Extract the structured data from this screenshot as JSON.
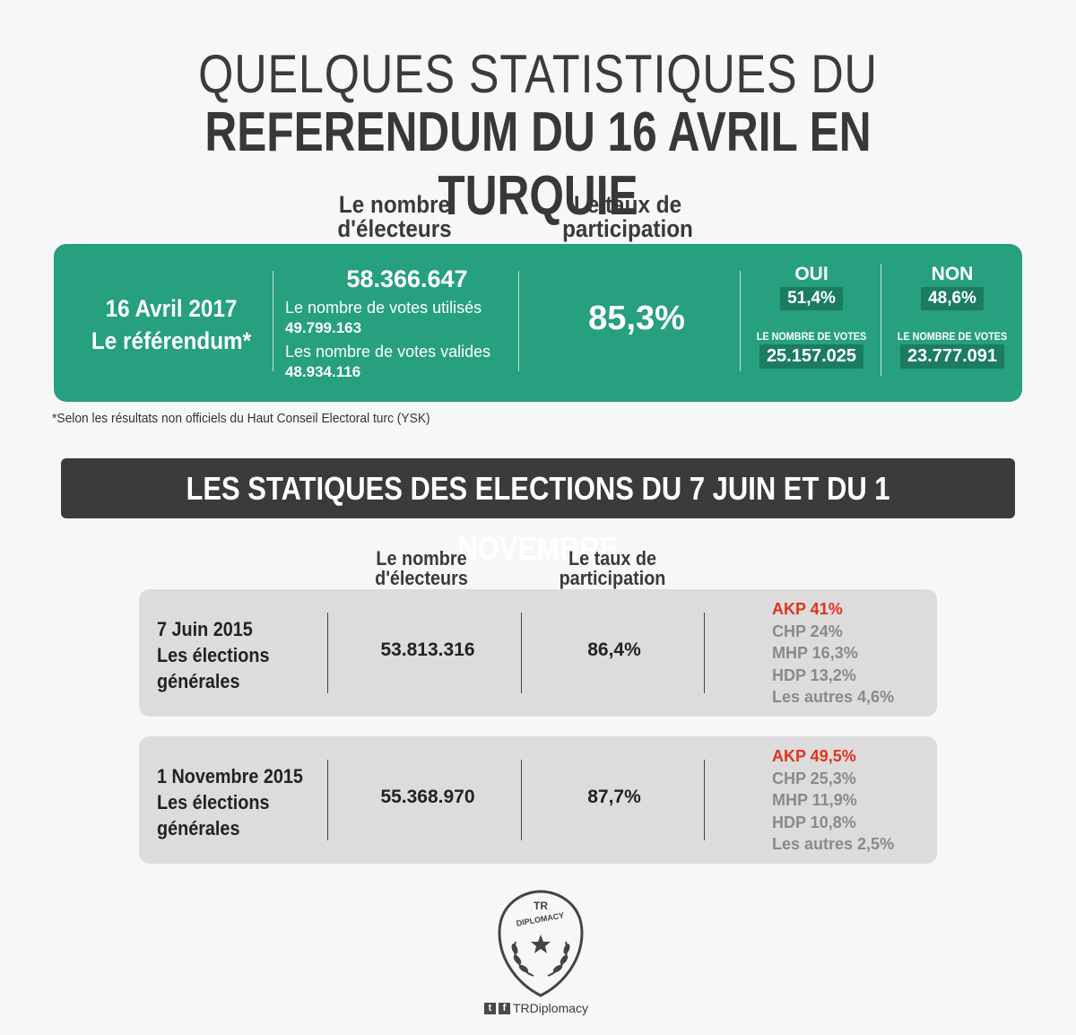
{
  "header": {
    "title_line1": "QUELQUES STATISTIQUES DU",
    "title_line2": "REFERENDUM DU 16 AVRIL EN TURQUIE"
  },
  "referendum_headers": {
    "voters_line1": "Le nombre",
    "voters_line2": "d'électeurs",
    "rate_line1": "Le taux de",
    "rate_line2": "participation"
  },
  "referendum": {
    "date": "16 Avril 2017",
    "label": "Le référendum*",
    "voters": "58.366.647",
    "used_label": "Le nombre de votes utilisés",
    "used_value": "49.799.163",
    "valid_label": "Les nombre de votes valides",
    "valid_value": "48.934.116",
    "participation": "85,3%",
    "yes": {
      "label": "OUI",
      "pct": "51,4%",
      "count_label": "LE NOMBRE DE VOTES",
      "count": "25.157.025"
    },
    "no": {
      "label": "NON",
      "pct": "48,6%",
      "count_label": "LE NOMBRE DE VOTES",
      "count": "23.777.091"
    }
  },
  "footnote": "*Selon les résultats non officiels du Haut Conseil Electoral turc (YSK)",
  "section_title": "LES STATIQUES DES ELECTIONS DU 7 JUIN ET DU 1 NOVEMBRE",
  "elections_headers": {
    "voters_line1": "Le nombre",
    "voters_line2": "d'électeurs",
    "rate_line1": "Le taux de",
    "rate_line2": "participation"
  },
  "elections": [
    {
      "date": "7 Juin 2015",
      "label_line1": "Les élections",
      "label_line2": "générales",
      "voters": "53.813.316",
      "participation": "86,4%",
      "parties": [
        "AKP 41%",
        "CHP 24%",
        "MHP 16,3%",
        "HDP 13,2%",
        "Les autres 4,6%"
      ]
    },
    {
      "date": "1 Novembre 2015",
      "label_line1": "Les élections",
      "label_line2": "générales",
      "voters": "55.368.970",
      "participation": "87,7%",
      "parties": [
        "AKP 49,5%",
        "CHP 25,3%",
        "MHP 11,9%",
        "HDP 10,8%",
        "Les autres 2,5%"
      ]
    }
  ],
  "logo": {
    "line1": "TR",
    "line2": "DIPLOMACY"
  },
  "social": {
    "handle": "TRDiplomacy",
    "icons": [
      "twitter-icon",
      "facebook-icon"
    ]
  },
  "colors": {
    "green": "#26a07e",
    "dark_green": "#1b7c60",
    "dark_bar": "#3b3b3b",
    "grey_panel": "#dcdcdc",
    "akp_red": "#e0321c"
  }
}
